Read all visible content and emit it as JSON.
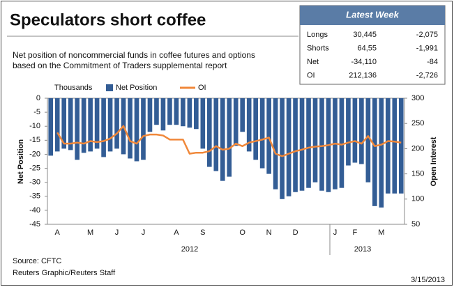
{
  "chart_data": {
    "type": "bar_line",
    "title": "Speculators short coffee",
    "subtitle": [
      "Net position of noncommercial funds in coffee futures and options",
      "based on the Commitment of Traders supplemental report"
    ],
    "units_label": "Thousands",
    "ylabel": "Net Position",
    "y2label": "Open Interest",
    "categories": [
      null,
      "A",
      null,
      null,
      null,
      null,
      "M",
      null,
      null,
      null,
      "J",
      null,
      null,
      null,
      "J",
      null,
      null,
      null,
      null,
      "A",
      null,
      null,
      null,
      "S",
      null,
      null,
      null,
      null,
      null,
      "O",
      null,
      null,
      null,
      "N",
      null,
      null,
      null,
      "D",
      null,
      null,
      null,
      null,
      null,
      "J",
      null,
      null,
      "F",
      null,
      null,
      null,
      "M",
      null,
      null,
      null
    ],
    "years": [
      "2012",
      "2013"
    ],
    "series": [
      {
        "name": "Net Position",
        "color": "#335d95",
        "values": [
          -20.5,
          -19,
          -18,
          -18.5,
          -22,
          -19.5,
          -19,
          -18,
          -21,
          -19,
          -18,
          -20,
          -21.5,
          -22.5,
          -22,
          -12,
          -9.5,
          -11.5,
          -9.5,
          -9.5,
          -10,
          -10.5,
          -11,
          -18,
          -24.5,
          -26,
          -29.5,
          -28,
          -17,
          -12,
          -19,
          -22,
          -25,
          -27,
          -32.5,
          -36,
          -35,
          -33.5,
          -33,
          -32,
          -30,
          -33,
          -33.5,
          -32.5,
          -32,
          -24,
          -23,
          -23.5,
          -30,
          -38.5,
          -39,
          -34,
          -34,
          -34
        ]
      },
      {
        "name": "OI",
        "color": "#f0883a",
        "axis": "y2",
        "values": [
          null,
          232,
          210,
          210,
          212,
          210,
          215,
          213,
          215,
          220,
          230,
          245,
          215,
          210,
          225,
          228,
          228,
          226,
          218,
          218,
          218,
          190,
          192,
          192,
          195,
          205,
          198,
          200,
          210,
          205,
          212,
          215,
          218,
          222,
          190,
          185,
          190,
          195,
          198,
          202,
          204,
          205,
          207,
          210,
          208,
          212,
          215,
          210,
          225,
          205,
          208,
          215,
          214,
          212
        ]
      }
    ],
    "ylim": [
      -45,
      0
    ],
    "yticks": [
      0,
      -5,
      -10,
      -15,
      -20,
      -25,
      -30,
      -35,
      -40,
      -45
    ],
    "y2lim": [
      50,
      300
    ],
    "y2ticks": [
      50,
      100,
      150,
      200,
      250,
      300
    ],
    "grid": false,
    "table": {
      "title": "Latest Week",
      "rows": [
        [
          "Longs",
          "30,445",
          "-2,075"
        ],
        [
          "Shorts",
          "64,55",
          "-1,991"
        ],
        [
          "Net",
          "-34,110",
          "-84"
        ],
        [
          "OI",
          "212,136",
          "-2,726"
        ]
      ]
    },
    "source": [
      "Source: CFTC",
      "Reuters Graphic/Reuters Staff"
    ],
    "date": "3/15/2013"
  }
}
